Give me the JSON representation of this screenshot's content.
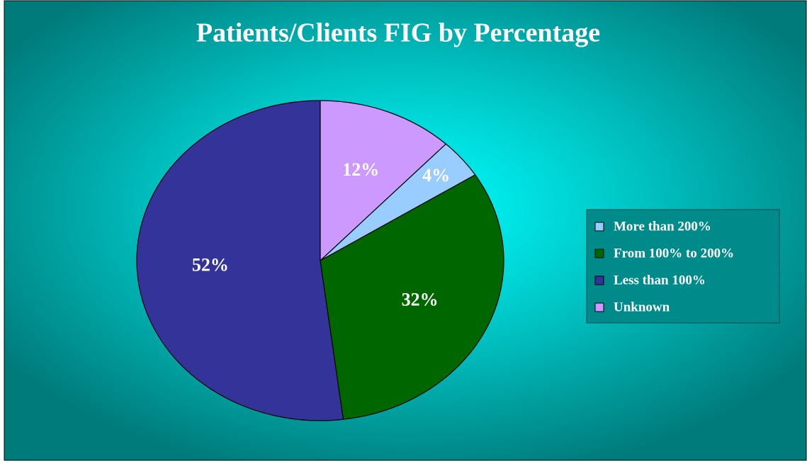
{
  "chart_data": {
    "type": "pie",
    "title": "Patients/Clients FIG by Percentage",
    "categories": [
      "More than 200%",
      "From 100% to 200%",
      "Less than 100%",
      "Unknown"
    ],
    "values": [
      4,
      32,
      52,
      12
    ],
    "value_labels": [
      "4%",
      "32%",
      "52%",
      "12%"
    ],
    "colors": [
      "#99ccff",
      "#006600",
      "#333399",
      "#cc99ff"
    ],
    "legend": "right"
  }
}
